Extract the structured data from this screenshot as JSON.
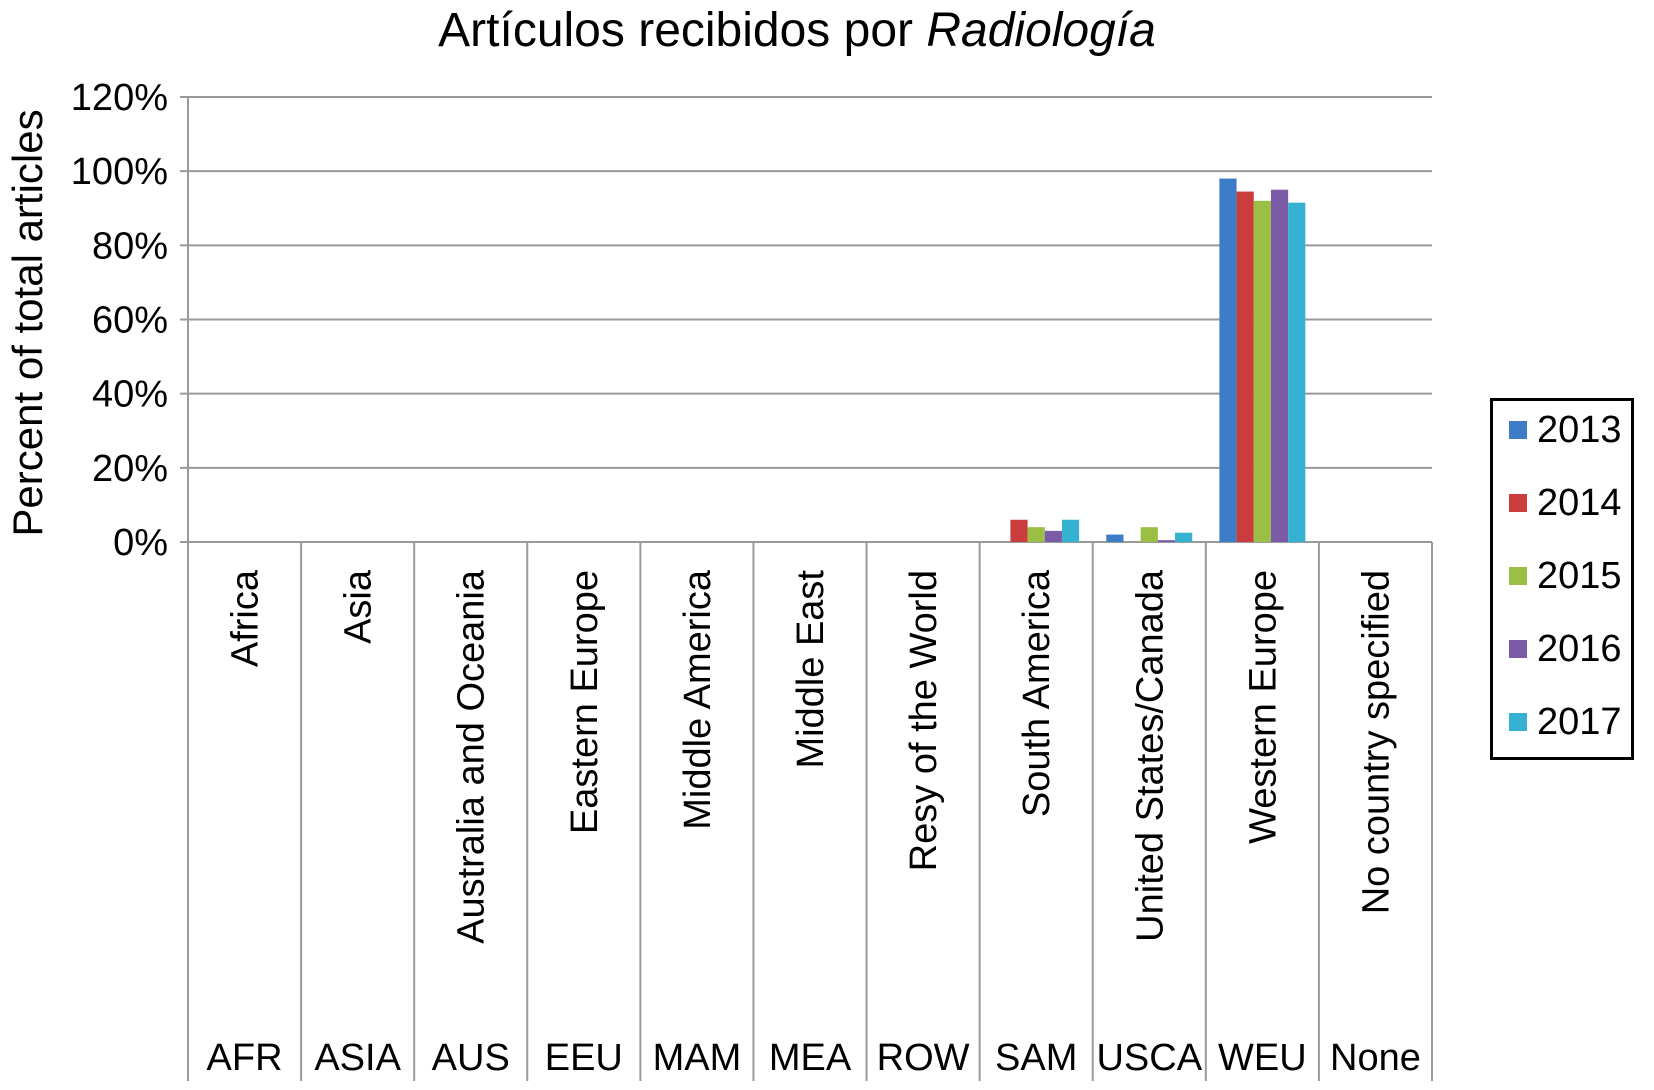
{
  "chart_data": {
    "type": "bar",
    "title_prefix": "Artículos recibidos por ",
    "title_italic": "Radiología",
    "ylabel": "Percent of total articles",
    "xlabel": "",
    "ylim": [
      0,
      1.2
    ],
    "yticks": [
      "0%",
      "20%",
      "40%",
      "60%",
      "80%",
      "100%",
      "120%"
    ],
    "grid": true,
    "legend_position": "right",
    "categories": [
      "Africa",
      "Asia",
      "Australia and Oceania",
      "Eastern Europe",
      "Middle America",
      "Middle East",
      "Resy of the World",
      "South America",
      "United States/Canada",
      "Western Europe",
      "No country specified"
    ],
    "category_codes": [
      "AFR",
      "ASIA",
      "AUS",
      "EEU",
      "MAM",
      "MEA",
      "ROW",
      "SAM",
      "USCA",
      "WEU",
      "None"
    ],
    "series": [
      {
        "name": "2013",
        "color": "#3d7cc6",
        "values": [
          0,
          0,
          0,
          0,
          0,
          0,
          0,
          0,
          0.02,
          0.98,
          0
        ]
      },
      {
        "name": "2014",
        "color": "#cb3d3d",
        "values": [
          0,
          0,
          0,
          0,
          0,
          0,
          0,
          0.06,
          0,
          0.945,
          0
        ]
      },
      {
        "name": "2015",
        "color": "#9bbf45",
        "values": [
          0,
          0,
          0,
          0,
          0,
          0,
          0,
          0.04,
          0.04,
          0.92,
          0
        ]
      },
      {
        "name": "2016",
        "color": "#7b5ba6",
        "values": [
          0,
          0,
          0,
          0,
          0,
          0,
          0,
          0.03,
          0.005,
          0.95,
          0
        ]
      },
      {
        "name": "2017",
        "color": "#35b1d1",
        "values": [
          0,
          0,
          0,
          0,
          0,
          0,
          0,
          0.06,
          0.025,
          0.915,
          0
        ]
      }
    ]
  }
}
